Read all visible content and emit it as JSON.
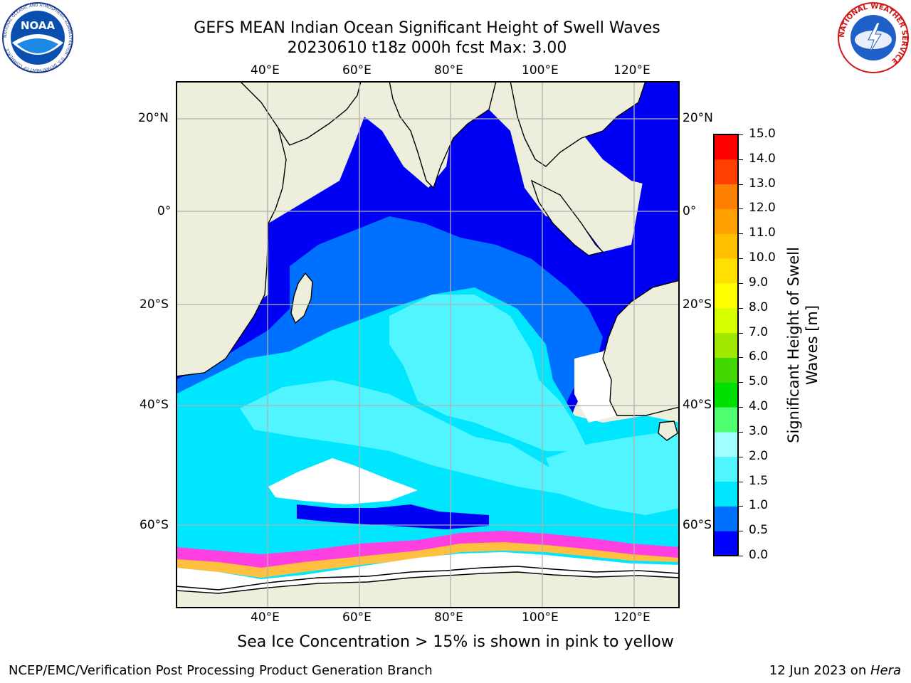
{
  "header": {
    "title_line1": "GEFS MEAN Indian Ocean Significant Height of Swell Waves",
    "title_line2": "20230610 t18z 000h fcst   Max: 3.00"
  },
  "logos": {
    "left": "NOAA",
    "right": "NATIONAL WEATHER SERVICE",
    "left_ring": "NATIONAL OCEANIC AND ATMOSPHERIC ADMINISTRATION · U.S. DEPARTMENT OF COMMERCE"
  },
  "map": {
    "lon_labels": [
      "40°E",
      "60°E",
      "80°E",
      "100°E",
      "120°E"
    ],
    "lat_labels": [
      "20°N",
      "0°",
      "20°S",
      "40°S",
      "60°S"
    ],
    "colors": {
      "land": "#eeeedc",
      "ocean_low": "#0000f5",
      "ocean_mid": "#0070ff",
      "ocean_high": "#00e6ff",
      "ocean_peak": "#50f5ff",
      "ice_free": "#ffffff",
      "sea_ice_pink": "#ff40e0",
      "sea_ice_orange": "#ffc040",
      "grid": "#b0b0b0"
    }
  },
  "colorbar": {
    "label_line1": "Significant Height of Swell",
    "label_line2": "Waves [m]",
    "ticks": [
      "0.0",
      "0.5",
      "1.0",
      "1.5",
      "2.0",
      "3.0",
      "4.0",
      "5.0",
      "6.0",
      "7.0",
      "8.0",
      "9.0",
      "10.0",
      "11.0",
      "12.0",
      "13.0",
      "14.0",
      "15.0"
    ],
    "colors": [
      "#0000ff",
      "#0070ff",
      "#00e6ff",
      "#50f5ff",
      "#a0ffff",
      "#50ff70",
      "#00e000",
      "#40d800",
      "#a0e800",
      "#d8ff00",
      "#ffff00",
      "#ffe000",
      "#ffc000",
      "#ffa000",
      "#ff8000",
      "#ff4000",
      "#ff0000"
    ]
  },
  "caption": "Sea Ice Concentration > 15% is shown in pink to yellow",
  "footer": {
    "left": "NCEP/EMC/Verification Post Processing Product Generation Branch",
    "right_date": "12 Jun 2023 on ",
    "right_host": "Hera"
  }
}
